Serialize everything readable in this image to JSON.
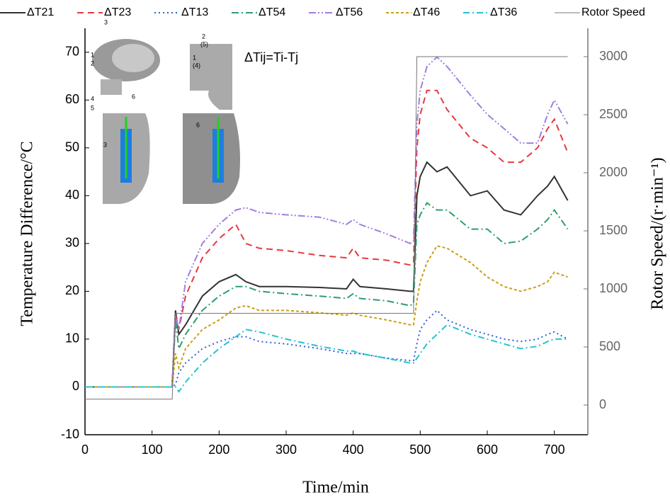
{
  "chart_data": {
    "type": "line",
    "xlabel": "Time/min",
    "ylabel": "Temperature Difference/°C",
    "y2label": "Rotor Speed/(r·min⁻¹)",
    "annotation": "ΔTij=Ti-Tj",
    "inset_labels": [
      "3",
      "1",
      "2",
      "4",
      "5",
      "6",
      "2",
      "(5)",
      "1",
      "(4)",
      "3",
      "6"
    ],
    "x": [
      0,
      130,
      135,
      140,
      150,
      175,
      200,
      225,
      240,
      260,
      300,
      350,
      390,
      400,
      410,
      450,
      485,
      490,
      495,
      500,
      510,
      525,
      540,
      575,
      600,
      625,
      650,
      675,
      690,
      700,
      720
    ],
    "xlim": [
      0,
      750
    ],
    "xticks": [
      0,
      100,
      200,
      300,
      400,
      500,
      600,
      700
    ],
    "ylim": [
      -10,
      75
    ],
    "yticks": [
      -10,
      0,
      10,
      20,
      30,
      40,
      50,
      60,
      70
    ],
    "y2lim": [
      -256,
      3244
    ],
    "y2ticks": [
      0,
      500,
      1000,
      1500,
      2000,
      2500,
      3000
    ],
    "grid": false,
    "legend": "top",
    "series": [
      {
        "name": "ΔT21",
        "color": "#333333",
        "dash": "",
        "values": [
          0,
          0,
          16,
          11,
          13,
          19,
          22,
          23.5,
          22,
          21,
          21,
          20.8,
          20.5,
          22.5,
          21,
          20.5,
          20,
          20,
          40,
          44,
          47,
          45,
          46,
          40,
          41,
          37,
          36,
          40,
          42,
          44,
          39
        ]
      },
      {
        "name": "ΔT23",
        "color": "#e8383d",
        "dash": "9,6",
        "values": [
          0,
          0,
          15,
          12,
          19,
          27,
          31,
          34,
          30,
          29,
          28.5,
          27.5,
          27,
          29,
          27,
          26.5,
          25.5,
          26,
          50,
          57,
          62,
          62,
          58,
          52,
          50,
          47,
          47,
          50,
          54,
          56,
          49
        ]
      },
      {
        "name": "ΔT13",
        "color": "#2b5fd9",
        "dash": "2,4",
        "values": [
          0,
          0,
          0.5,
          3,
          5,
          8,
          9.5,
          10.5,
          10.5,
          9.5,
          9,
          8,
          7,
          7,
          7,
          6,
          5.5,
          5.5,
          9,
          12,
          14,
          16,
          14,
          12,
          11,
          10,
          9.5,
          10,
          11,
          11.5,
          10
        ]
      },
      {
        "name": "ΔT54",
        "color": "#2e9e6b",
        "dash": "10,4,2,4",
        "values": [
          0,
          0,
          14,
          8,
          11,
          16,
          19,
          21,
          21,
          20,
          19.5,
          19,
          18.5,
          19.5,
          18.5,
          18,
          17,
          17.5,
          34,
          36,
          38.5,
          37,
          37,
          33,
          33,
          30,
          30.5,
          33,
          35,
          37,
          33
        ]
      },
      {
        "name": "ΔT56",
        "color": "#a07ee0",
        "dash": "10,3,2,3,2,3",
        "values": [
          0,
          0,
          15,
          12,
          22,
          30,
          34,
          37,
          37.5,
          36.5,
          36,
          35.5,
          34,
          35,
          34,
          32,
          30,
          30.5,
          55,
          62,
          67,
          69,
          67,
          61,
          57,
          54,
          51,
          51,
          57,
          60,
          55
        ]
      },
      {
        "name": "ΔT46",
        "color": "#c9a014",
        "dash": "4,3",
        "values": [
          0,
          0,
          7,
          4,
          8,
          12,
          14,
          16.5,
          17,
          16,
          16,
          15.5,
          15,
          15.5,
          15,
          14,
          13,
          13,
          18,
          22,
          26,
          29.5,
          29,
          26,
          23,
          21,
          20,
          21,
          22,
          24,
          23
        ]
      },
      {
        "name": "ΔT36",
        "color": "#22c4cf",
        "dash": "9,4,2,4",
        "values": [
          0,
          0,
          0,
          -1,
          1,
          5,
          8,
          10.5,
          12,
          11.5,
          10,
          8.5,
          7.5,
          7.5,
          7,
          6,
          5,
          5,
          6,
          7,
          9,
          11,
          13,
          11,
          10,
          9,
          8,
          8.5,
          9.5,
          10,
          10
        ]
      },
      {
        "name": "Rotor Speed",
        "color": "#777777",
        "dash": "",
        "axis": "y2",
        "values": [
          50,
          50,
          790,
          790,
          790,
          790,
          790,
          790,
          790,
          790,
          790,
          790,
          790,
          790,
          790,
          790,
          790,
          790,
          3000,
          3000,
          3000,
          3000,
          3000,
          3000,
          3000,
          3000,
          3000,
          3000,
          3000,
          3000,
          3000
        ]
      }
    ]
  }
}
